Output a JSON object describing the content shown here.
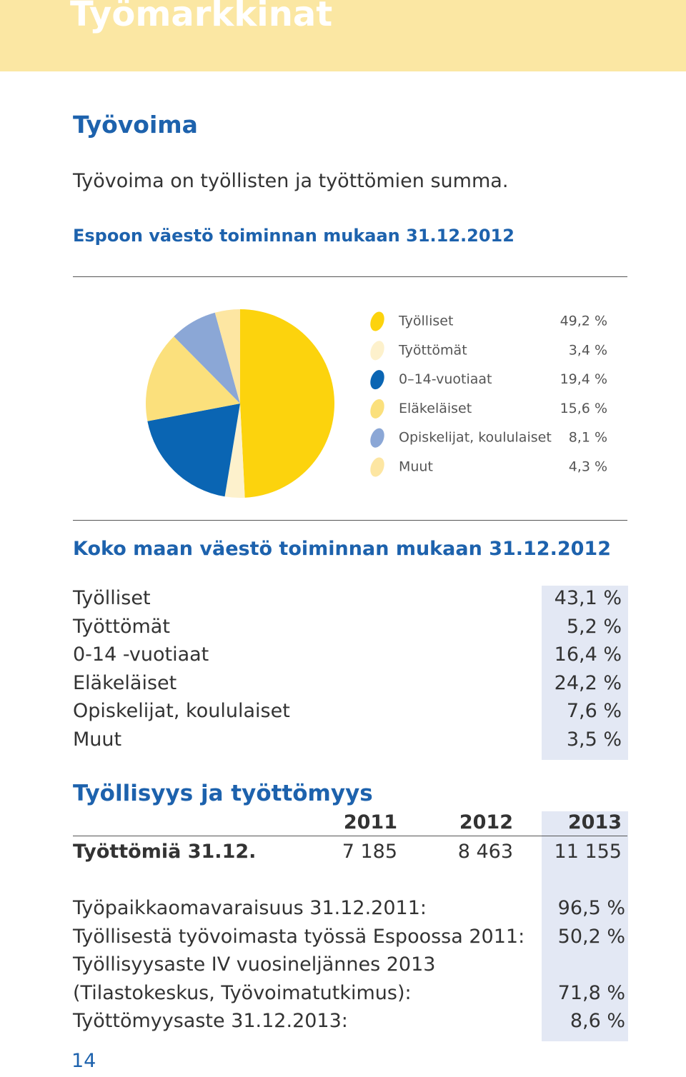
{
  "header": {
    "title": "Työmarkkinat"
  },
  "section": {
    "heading": "Työvoima",
    "text": "Työvoima on työllisten ja työttömien summa."
  },
  "chart_data": {
    "type": "pie",
    "title": "Espoon väestö toiminnan mukaan 31.12.2012",
    "categories": [
      "Työlliset",
      "Työttömät",
      "0–14-vuotiaat",
      "Eläkeläiset",
      "Opiskelijat, koululaiset",
      "Muut"
    ],
    "values": [
      49.2,
      3.4,
      19.4,
      15.6,
      8.1,
      4.3
    ],
    "value_labels": [
      "49,2 %",
      "3,4 %",
      "19,4 %",
      "15,6 %",
      "8,1 %",
      "4,3 %"
    ],
    "colors": [
      "#fcd30d",
      "#fdf1cc",
      "#0a65b3",
      "#fbe07c",
      "#8ba7d6",
      "#fde6a2"
    ]
  },
  "national": {
    "title": "Koko maan väestö toiminnan mukaan 31.12.2012",
    "rows": [
      [
        "Työlliset",
        "43,1 %"
      ],
      [
        "Työttömät",
        "5,2 %"
      ],
      [
        "0-14 -vuotiaat",
        "16,4 %"
      ],
      [
        "Eläkeläiset",
        "24,2 %"
      ],
      [
        "Opiskelijat, koululaiset",
        "7,6 %"
      ],
      [
        "Muut",
        "3,5 %"
      ]
    ]
  },
  "employment": {
    "heading": "Työllisyys ja työttömyys",
    "columns": [
      "2011",
      "2012",
      "2013"
    ],
    "row": {
      "label": "Työttömiä 31.12.",
      "values": [
        "7 185",
        "8 463",
        "11 155"
      ]
    }
  },
  "stats": {
    "rows": [
      {
        "lines": [
          "Työpaikkaomavaraisuus 31.12.2011:"
        ],
        "value": "96,5 %"
      },
      {
        "lines": [
          "Työllisestä työvoimasta työssä Espoossa 2011:"
        ],
        "value": "50,2 %"
      },
      {
        "lines": [
          "Työllisyysaste IV vuosineljännes 2013",
          "(Tilastokeskus, Työvoimatutkimus):"
        ],
        "value": "71,8 %"
      },
      {
        "lines": [
          "Työttömyysaste 31.12.2013:"
        ],
        "value": "8,6 %"
      }
    ]
  },
  "page_number": "14"
}
